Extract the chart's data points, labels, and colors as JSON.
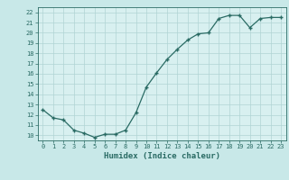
{
  "x": [
    0,
    1,
    2,
    3,
    4,
    5,
    6,
    7,
    8,
    9,
    10,
    11,
    12,
    13,
    14,
    15,
    16,
    17,
    18,
    19,
    20,
    21,
    22,
    23
  ],
  "y": [
    12.5,
    11.7,
    11.5,
    10.5,
    10.2,
    9.8,
    10.1,
    10.1,
    10.5,
    12.2,
    14.7,
    16.1,
    17.4,
    18.4,
    19.3,
    19.9,
    20.0,
    21.4,
    21.7,
    21.7,
    20.5,
    21.4,
    21.5,
    21.5
  ],
  "xlabel": "Humidex (Indice chaleur)",
  "bg_color": "#c8e8e8",
  "line_color": "#2a6b64",
  "grid_color": "#b0d4d4",
  "plot_bg": "#d8f0f0",
  "ylim": [
    9.5,
    22.5
  ],
  "xlim": [
    -0.5,
    23.5
  ],
  "yticks": [
    10,
    11,
    12,
    13,
    14,
    15,
    16,
    17,
    18,
    19,
    20,
    21,
    22
  ],
  "xticks": [
    0,
    1,
    2,
    3,
    4,
    5,
    6,
    7,
    8,
    9,
    10,
    11,
    12,
    13,
    14,
    15,
    16,
    17,
    18,
    19,
    20,
    21,
    22,
    23
  ],
  "tick_fontsize": 5.0,
  "xlabel_fontsize": 6.5
}
